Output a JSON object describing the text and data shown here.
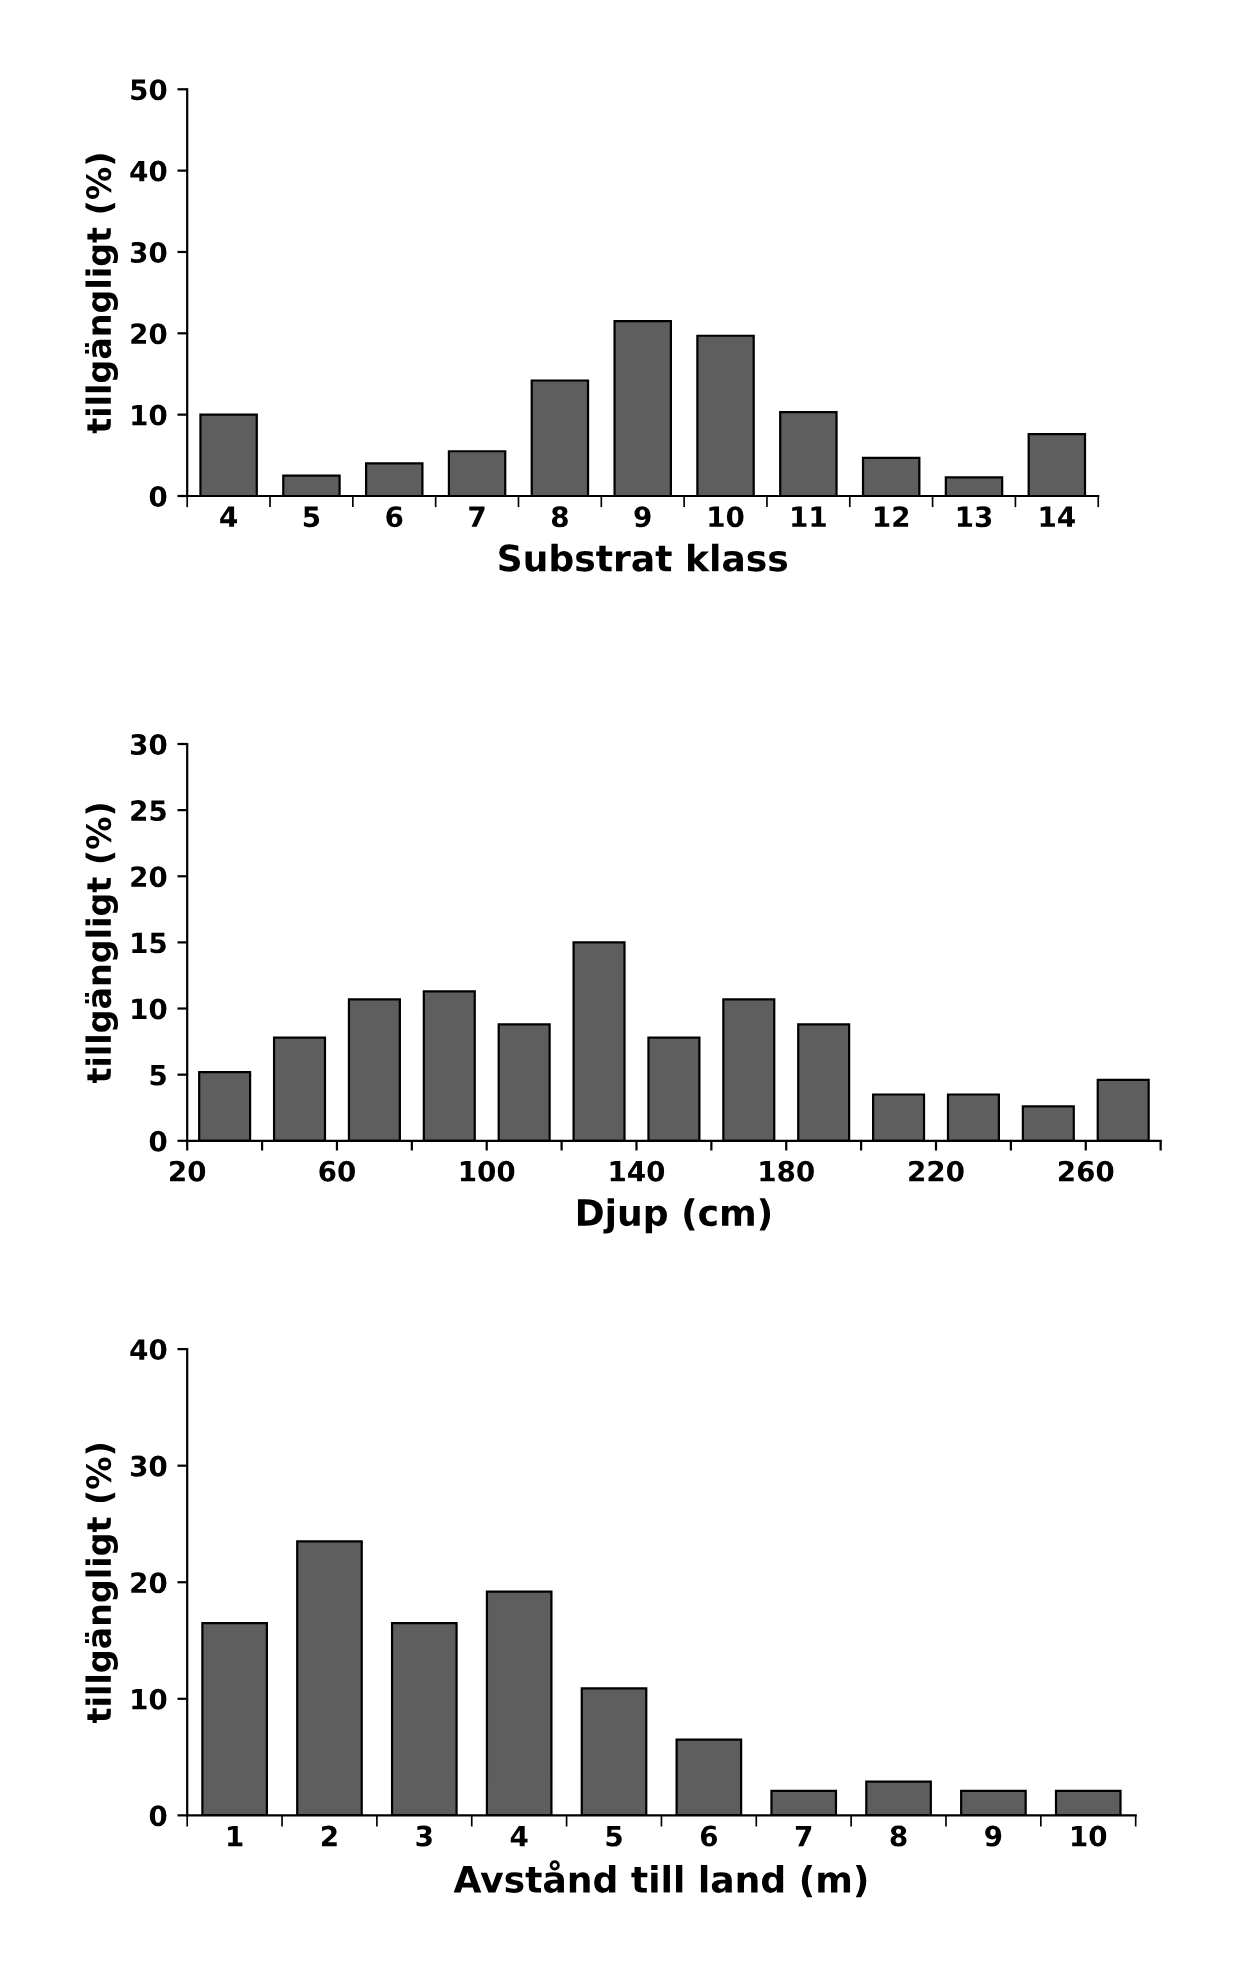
{
  "chart_data": [
    {
      "type": "bar",
      "xlabel": "Substrat klass",
      "ylabel": "tillgängligt (%)",
      "categories": [
        "4",
        "5",
        "6",
        "7",
        "8",
        "9",
        "10",
        "11",
        "12",
        "13",
        "14"
      ],
      "values": [
        10,
        2.5,
        4,
        5.5,
        14.2,
        21.5,
        19.7,
        10.3,
        4.7,
        2.3,
        7.6
      ],
      "color": "#5e5e5e",
      "ylim": [
        0,
        50
      ],
      "yticks": [
        0,
        10,
        20,
        30,
        40,
        50
      ],
      "grid": false,
      "legend": false
    },
    {
      "type": "histogram",
      "xlabel": "Djup (cm)",
      "ylabel": "tillgängligt (%)",
      "bins": [
        20,
        40,
        60,
        80,
        100,
        120,
        140,
        160,
        180,
        200,
        220,
        240,
        260,
        280
      ],
      "values": [
        5.2,
        7.8,
        10.7,
        11.3,
        8.8,
        15,
        7.8,
        10.7,
        8.8,
        3.5,
        3.5,
        2.6,
        4.6
      ],
      "color": "#5e5e5e",
      "xlim": [
        20,
        280
      ],
      "xticks": [
        20,
        {
          "value": 40,
          "label": null
        },
        60,
        {
          "value": 80,
          "label": null
        },
        100,
        {
          "value": 120,
          "label": null
        },
        140,
        {
          "value": 160,
          "label": null
        },
        180,
        {
          "value": 200,
          "label": null
        },
        220,
        {
          "value": 240,
          "label": null
        },
        260,
        {
          "value": 280,
          "label": null
        }
      ],
      "ylim": [
        0,
        30
      ],
      "yticks": [
        0,
        5,
        10,
        15,
        20,
        25,
        30
      ],
      "grid": false,
      "legend": false
    },
    {
      "type": "bar",
      "xlabel": "Avstånd till land (m)",
      "ylabel": "tillgängligt (%)",
      "categories": [
        "1",
        "2",
        "3",
        "4",
        "5",
        "6",
        "7",
        "8",
        "9",
        "10"
      ],
      "values": [
        16.5,
        23.5,
        16.5,
        19.2,
        10.9,
        6.5,
        2.1,
        2.9,
        2.1,
        2.1
      ],
      "color": "#5e5e5e",
      "ylim": [
        0,
        40
      ],
      "yticks": [
        0,
        10,
        20,
        30,
        40
      ],
      "grid": false,
      "legend": false
    }
  ]
}
